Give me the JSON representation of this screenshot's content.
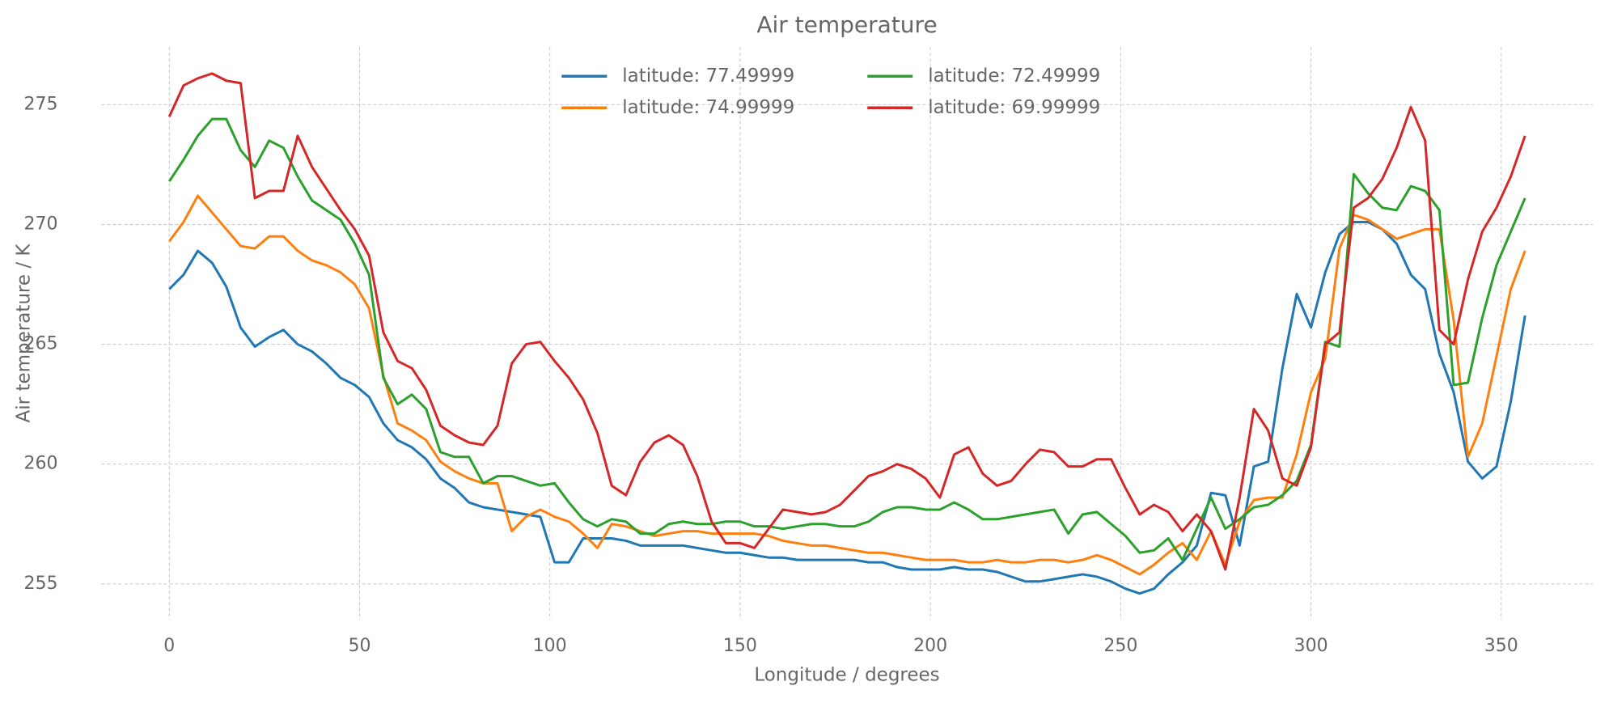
{
  "chart_data": {
    "type": "line",
    "title": "Air temperature",
    "x_label": "Longitude / degrees",
    "y_label": "Air temperature / K",
    "x": [
      0,
      3.75,
      7.5,
      11.25,
      15,
      18.75,
      22.5,
      26.25,
      30,
      33.75,
      37.5,
      41.25,
      45,
      48.75,
      52.5,
      56.25,
      60,
      63.75,
      67.5,
      71.25,
      75,
      78.75,
      82.5,
      86.25,
      90,
      93.75,
      97.5,
      101.25,
      105,
      108.75,
      112.5,
      116.25,
      120,
      123.75,
      127.5,
      131.25,
      135,
      138.75,
      142.5,
      146.25,
      150,
      153.75,
      157.5,
      161.25,
      165,
      168.75,
      172.5,
      176.25,
      180,
      183.75,
      187.5,
      191.25,
      195,
      198.75,
      202.5,
      206.25,
      210,
      213.75,
      217.5,
      221.25,
      225,
      228.75,
      232.5,
      236.25,
      240,
      243.75,
      247.5,
      251.25,
      255,
      258.75,
      262.5,
      266.25,
      270,
      273.75,
      277.5,
      281.25,
      285,
      288.75,
      292.5,
      296.25,
      300,
      303.75,
      307.5,
      311.25,
      315,
      318.75,
      322.5,
      326.25,
      330,
      333.75,
      337.5,
      341.25,
      345,
      348.75,
      352.5,
      356.25
    ],
    "series": [
      {
        "name": "latitude: 77.49999",
        "color": "#1f77b4",
        "values": [
          267.3,
          267.9,
          268.9,
          268.4,
          267.4,
          265.7,
          264.9,
          265.3,
          265.6,
          265.0,
          264.7,
          264.2,
          263.6,
          263.3,
          262.8,
          261.7,
          261.0,
          260.7,
          260.2,
          259.4,
          259.0,
          258.4,
          258.2,
          258.1,
          258.0,
          257.9,
          257.8,
          255.9,
          255.9,
          256.9,
          256.9,
          256.9,
          256.8,
          256.6,
          256.6,
          256.6,
          256.6,
          256.5,
          256.4,
          256.3,
          256.3,
          256.2,
          256.1,
          256.1,
          256.0,
          256.0,
          256.0,
          256.0,
          256.0,
          255.9,
          255.9,
          255.7,
          255.6,
          255.6,
          255.6,
          255.7,
          255.6,
          255.6,
          255.5,
          255.3,
          255.1,
          255.1,
          255.2,
          255.3,
          255.4,
          255.3,
          255.1,
          254.8,
          254.6,
          254.8,
          255.4,
          255.9,
          256.6,
          258.8,
          258.7,
          256.6,
          259.9,
          260.1,
          264.0,
          267.1,
          265.7,
          268.0,
          269.6,
          270.1,
          270.1,
          269.8,
          269.2,
          267.9,
          267.3,
          264.6,
          263.0,
          260.1,
          259.4,
          259.9,
          262.6,
          266.2
        ]
      },
      {
        "name": "latitude: 74.99999",
        "color": "#ff7f0e",
        "values": [
          269.3,
          270.1,
          271.2,
          270.5,
          269.8,
          269.1,
          269.0,
          269.5,
          269.5,
          268.9,
          268.5,
          268.3,
          268.0,
          267.5,
          266.5,
          263.7,
          261.7,
          261.4,
          261.0,
          260.1,
          259.7,
          259.4,
          259.2,
          259.2,
          257.2,
          257.8,
          258.1,
          257.8,
          257.6,
          257.1,
          256.5,
          257.5,
          257.4,
          257.2,
          257.0,
          257.1,
          257.2,
          257.2,
          257.1,
          257.1,
          257.1,
          257.1,
          257.0,
          256.8,
          256.7,
          256.6,
          256.6,
          256.5,
          256.4,
          256.3,
          256.3,
          256.2,
          256.1,
          256.0,
          256.0,
          256.0,
          255.9,
          255.9,
          256.0,
          255.9,
          255.9,
          256.0,
          256.0,
          255.9,
          256.0,
          256.2,
          256.0,
          255.7,
          255.4,
          255.8,
          256.3,
          256.7,
          256.0,
          257.2,
          255.8,
          257.6,
          258.5,
          258.6,
          258.6,
          260.4,
          263.0,
          264.4,
          269.0,
          270.4,
          270.2,
          269.8,
          269.4,
          269.6,
          269.8,
          269.8,
          266.0,
          260.3,
          261.7,
          264.5,
          267.3,
          268.9
        ]
      },
      {
        "name": "latitude: 72.49999",
        "color": "#2ca02c",
        "values": [
          271.8,
          272.7,
          273.7,
          274.4,
          274.4,
          273.1,
          272.4,
          273.5,
          273.2,
          272.0,
          271.0,
          270.6,
          270.2,
          269.2,
          267.9,
          263.6,
          262.5,
          262.9,
          262.3,
          260.5,
          260.3,
          260.3,
          259.2,
          259.5,
          259.5,
          259.3,
          259.1,
          259.2,
          258.4,
          257.7,
          257.4,
          257.7,
          257.6,
          257.1,
          257.1,
          257.5,
          257.6,
          257.5,
          257.5,
          257.6,
          257.6,
          257.4,
          257.4,
          257.3,
          257.4,
          257.5,
          257.5,
          257.4,
          257.4,
          257.6,
          258.0,
          258.2,
          258.2,
          258.1,
          258.1,
          258.4,
          258.1,
          257.7,
          257.7,
          257.8,
          257.9,
          258.0,
          258.1,
          257.1,
          257.9,
          258.0,
          257.5,
          257.0,
          256.3,
          256.4,
          256.9,
          256.0,
          257.3,
          258.6,
          257.3,
          257.7,
          258.2,
          258.3,
          258.7,
          259.3,
          260.8,
          265.1,
          264.9,
          272.1,
          271.3,
          270.7,
          270.6,
          271.6,
          271.4,
          270.6,
          263.3,
          263.4,
          266.1,
          268.3,
          269.7,
          271.1
        ]
      },
      {
        "name": "latitude: 69.99999",
        "color": "#d62728",
        "values": [
          274.5,
          275.8,
          276.1,
          276.3,
          276.0,
          275.9,
          271.1,
          271.4,
          271.4,
          273.7,
          272.4,
          271.5,
          270.6,
          269.8,
          268.7,
          265.5,
          264.3,
          264.0,
          263.1,
          261.6,
          261.2,
          260.9,
          260.8,
          261.6,
          264.2,
          265.0,
          265.1,
          264.3,
          263.6,
          262.7,
          261.3,
          259.1,
          258.7,
          260.1,
          260.9,
          261.2,
          260.8,
          259.5,
          257.6,
          256.7,
          256.7,
          256.5,
          257.3,
          258.1,
          258.0,
          257.9,
          258.0,
          258.3,
          258.9,
          259.5,
          259.7,
          260.0,
          259.8,
          259.4,
          258.6,
          260.4,
          260.7,
          259.6,
          259.1,
          259.3,
          260.0,
          260.6,
          260.5,
          259.9,
          259.9,
          260.2,
          260.2,
          259.0,
          257.9,
          258.3,
          258.0,
          257.2,
          257.9,
          257.2,
          255.6,
          258.6,
          262.3,
          261.4,
          259.4,
          259.1,
          260.7,
          265.0,
          265.5,
          270.7,
          271.1,
          271.9,
          273.2,
          274.9,
          273.5,
          265.6,
          265.0,
          267.7,
          269.7,
          270.7,
          272.0,
          273.7
        ]
      }
    ],
    "xlim": [
      -17.8,
      374.06
    ],
    "xticks": [
      0,
      50,
      100,
      150,
      200,
      250,
      300,
      350
    ],
    "ylim": [
      253.5,
      277.4
    ],
    "yticks": [
      255,
      260,
      265,
      270,
      275
    ],
    "grid": true,
    "legend": "upper center",
    "legend_columns": 2
  }
}
